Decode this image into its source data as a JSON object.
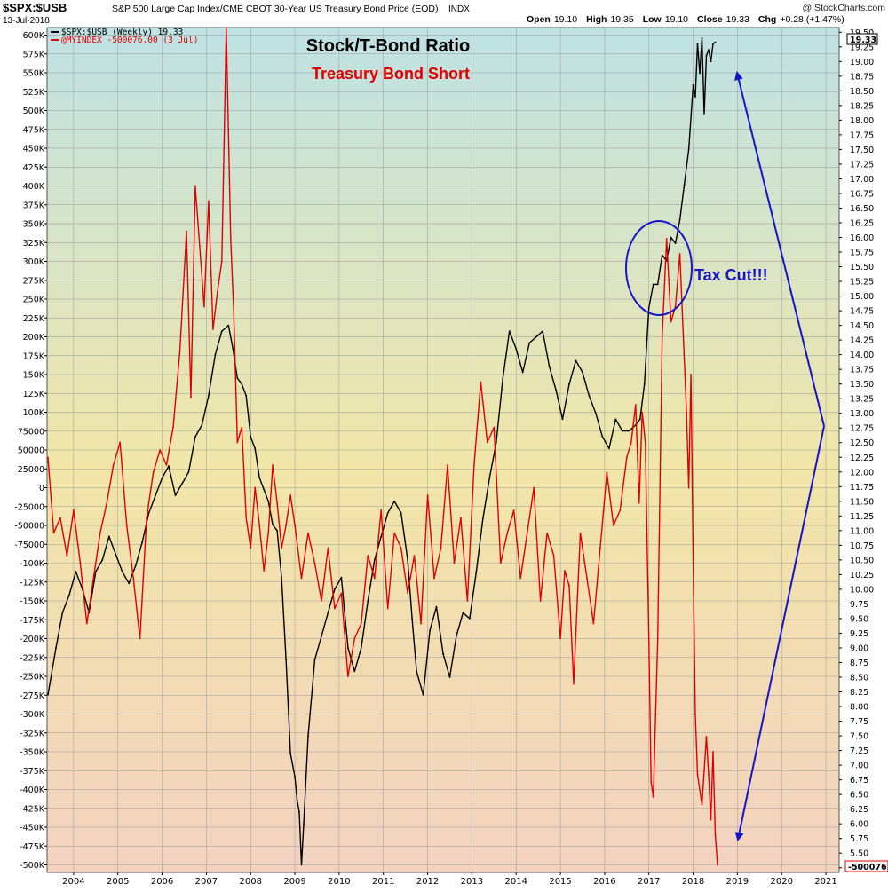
{
  "header": {
    "ticker": "$SPX:$USB",
    "description": "S&P 500 Large Cap Index/CME CBOT 30-Year US Treasury Bond Price (EOD)",
    "exchange": "INDX",
    "date": "13-Jul-2018",
    "open_label": "Open",
    "open": "19.10",
    "high_label": "High",
    "high": "19.35",
    "low_label": "Low",
    "low": "19.10",
    "close_label": "Close",
    "close": "19.33",
    "chg_label": "Chg",
    "chg": "+0.28 (+1.47%)",
    "brand": "@ StockCharts.com"
  },
  "legend": [
    {
      "text": "$SPX:$USB (Weekly) 19.33",
      "color": "#000000"
    },
    {
      "text": "@MYINDEX -500076.00 (3 Jul)",
      "color": "#e00000"
    }
  ],
  "tags": {
    "right_value": "19.33",
    "bottom_value": "-500076.0"
  },
  "colors": {
    "ratio": "#000000",
    "index": "#e00000",
    "annotation": "#1515c8",
    "bg_top": "#bfe2e4",
    "bg_mid": "#f1e6a8",
    "bg_bottom": "#f3d2c0"
  },
  "chart_data": {
    "type": "line",
    "title": "Stock/T-Bond Ratio",
    "subtitle": "Treasury Bond Short",
    "annotations": [
      "Tax Cut!!!"
    ],
    "grid": true,
    "x_ticks": [
      "2004",
      "2005",
      "2006",
      "2007",
      "2008",
      "2009",
      "2010",
      "2011",
      "2012",
      "2013",
      "2014",
      "2015",
      "2016",
      "2017",
      "2018",
      "2019",
      "2020",
      "2021"
    ],
    "x_range": [
      2003.4,
      2021.3
    ],
    "y_left_range": [
      -510000,
      610000
    ],
    "y_left_ticks": [
      600000,
      575000,
      550000,
      525000,
      500000,
      475000,
      450000,
      425000,
      400000,
      375000,
      350000,
      325000,
      300000,
      275000,
      250000,
      225000,
      200000,
      175000,
      150000,
      125000,
      100000,
      75000,
      50000,
      25000,
      0,
      -25000,
      -50000,
      -75000,
      -100000,
      -125000,
      -150000,
      -175000,
      -200000,
      -225000,
      -250000,
      -275000,
      -300000,
      -325000,
      -350000,
      -375000,
      -400000,
      -425000,
      -450000,
      -475000,
      -500000
    ],
    "y_left_tick_labels": [
      "600K",
      "575K",
      "550K",
      "525K",
      "500K",
      "475K",
      "450K",
      "425K",
      "400K",
      "375K",
      "350K",
      "325K",
      "300K",
      "275K",
      "250K",
      "225K",
      "200K",
      "175K",
      "150K",
      "125K",
      "100K",
      "75000",
      "50000",
      "25000",
      "0",
      "-25000",
      "-50000",
      "-75000",
      "-100K",
      "-125K",
      "-150K",
      "-175K",
      "-200K",
      "-225K",
      "-250K",
      "-275K",
      "-300K",
      "-325K",
      "-350K",
      "-375K",
      "-400K",
      "-425K",
      "-450K",
      "-475K",
      "-500K"
    ],
    "y_right_range": [
      5.17,
      19.58
    ],
    "y_right_ticks": [
      "19.50",
      "19.25",
      "19.00",
      "18.75",
      "18.50",
      "18.25",
      "18.00",
      "17.75",
      "17.50",
      "17.25",
      "17.00",
      "16.75",
      "16.50",
      "16.25",
      "16.00",
      "15.75",
      "15.50",
      "15.25",
      "15.00",
      "14.75",
      "14.50",
      "14.25",
      "14.00",
      "13.75",
      "13.50",
      "13.25",
      "13.00",
      "12.75",
      "12.50",
      "12.25",
      "12.00",
      "11.75",
      "11.50",
      "11.25",
      "11.00",
      "10.75",
      "10.50",
      "10.25",
      "10.00",
      "9.75",
      "9.50",
      "9.25",
      "9.00",
      "8.75",
      "8.50",
      "8.25",
      "8.00",
      "7.75",
      "7.50",
      "7.25",
      "7.00",
      "6.75",
      "6.50",
      "6.25",
      "6.00",
      "5.75",
      "5.50",
      "5.25"
    ],
    "series": [
      {
        "name": "$SPX:$USB (Weekly)",
        "axis": "right",
        "color": "#000000",
        "x": [
          2003.42,
          2003.6,
          2003.75,
          2003.9,
          2004.05,
          2004.2,
          2004.35,
          2004.5,
          2004.65,
          2004.8,
          2004.95,
          2005.1,
          2005.25,
          2005.4,
          2005.55,
          2005.7,
          2005.85,
          2006.0,
          2006.15,
          2006.3,
          2006.45,
          2006.6,
          2006.75,
          2006.9,
          2007.05,
          2007.2,
          2007.35,
          2007.5,
          2007.6,
          2007.7,
          2007.8,
          2007.9,
          2008.0,
          2008.1,
          2008.2,
          2008.3,
          2008.4,
          2008.5,
          2008.6,
          2008.7,
          2008.8,
          2008.9,
          2009.0,
          2009.05,
          2009.1,
          2009.15,
          2009.2,
          2009.3,
          2009.45,
          2009.6,
          2009.75,
          2009.9,
          2010.05,
          2010.2,
          2010.35,
          2010.5,
          2010.65,
          2010.8,
          2010.95,
          2011.1,
          2011.25,
          2011.4,
          2011.55,
          2011.65,
          2011.75,
          2011.9,
          2012.05,
          2012.2,
          2012.35,
          2012.5,
          2012.65,
          2012.8,
          2012.95,
          2013.1,
          2013.25,
          2013.4,
          2013.55,
          2013.7,
          2013.85,
          2014.0,
          2014.15,
          2014.3,
          2014.45,
          2014.6,
          2014.75,
          2014.9,
          2015.05,
          2015.2,
          2015.35,
          2015.5,
          2015.65,
          2015.8,
          2015.95,
          2016.1,
          2016.25,
          2016.4,
          2016.55,
          2016.7,
          2016.8,
          2016.9,
          2017.0,
          2017.1,
          2017.2,
          2017.3,
          2017.4,
          2017.5,
          2017.6,
          2017.7,
          2017.8,
          2017.9,
          2018.0,
          2018.05,
          2018.1,
          2018.15,
          2018.2,
          2018.25,
          2018.3,
          2018.35,
          2018.4,
          2018.45,
          2018.5
        ],
        "values": [
          8.2,
          9.0,
          9.6,
          9.9,
          10.3,
          10.0,
          9.6,
          10.3,
          10.5,
          10.9,
          10.6,
          10.3,
          10.1,
          10.4,
          10.8,
          11.3,
          11.6,
          11.9,
          12.1,
          11.6,
          11.8,
          12.0,
          12.6,
          12.8,
          13.3,
          14.0,
          14.4,
          14.5,
          14.1,
          13.6,
          13.5,
          13.3,
          12.6,
          12.4,
          11.9,
          11.7,
          11.5,
          11.1,
          11.0,
          10.2,
          8.8,
          7.2,
          6.8,
          6.4,
          6.2,
          5.3,
          6.0,
          7.5,
          8.8,
          9.2,
          9.6,
          10.0,
          10.2,
          9.0,
          8.6,
          9.0,
          9.8,
          10.5,
          10.9,
          11.3,
          11.5,
          11.3,
          10.5,
          9.5,
          8.6,
          8.2,
          9.3,
          9.7,
          8.9,
          8.5,
          9.2,
          9.6,
          9.5,
          10.3,
          11.2,
          11.9,
          12.5,
          13.6,
          14.4,
          14.1,
          13.7,
          14.2,
          14.3,
          14.4,
          13.8,
          13.4,
          12.9,
          13.5,
          13.9,
          13.7,
          13.3,
          13.0,
          12.6,
          12.4,
          12.9,
          12.7,
          12.7,
          12.8,
          12.9,
          13.5,
          14.8,
          15.2,
          15.2,
          15.7,
          15.6,
          16.0,
          15.9,
          16.3,
          16.9,
          17.5,
          18.6,
          18.4,
          19.3,
          18.8,
          19.4,
          18.1,
          19.1,
          19.2,
          19.0,
          19.3,
          19.33
        ]
      },
      {
        "name": "@MYINDEX",
        "axis": "left",
        "color": "#e00000",
        "x": [
          2003.42,
          2003.55,
          2003.7,
          2003.85,
          2004.0,
          2004.15,
          2004.3,
          2004.45,
          2004.6,
          2004.75,
          2004.9,
          2005.05,
          2005.2,
          2005.35,
          2005.5,
          2005.65,
          2005.8,
          2005.95,
          2006.1,
          2006.25,
          2006.4,
          2006.55,
          2006.65,
          2006.75,
          2006.85,
          2006.95,
          2007.05,
          2007.15,
          2007.25,
          2007.35,
          2007.45,
          2007.55,
          2007.62,
          2007.7,
          2007.8,
          2007.9,
          2008.0,
          2008.1,
          2008.2,
          2008.3,
          2008.4,
          2008.5,
          2008.6,
          2008.7,
          2008.8,
          2008.9,
          2009.0,
          2009.15,
          2009.3,
          2009.45,
          2009.6,
          2009.75,
          2009.9,
          2010.05,
          2010.2,
          2010.35,
          2010.5,
          2010.65,
          2010.8,
          2010.95,
          2011.1,
          2011.25,
          2011.4,
          2011.55,
          2011.7,
          2011.85,
          2012.0,
          2012.15,
          2012.3,
          2012.45,
          2012.6,
          2012.75,
          2012.9,
          2013.05,
          2013.2,
          2013.35,
          2013.5,
          2013.65,
          2013.8,
          2013.95,
          2014.1,
          2014.25,
          2014.4,
          2014.55,
          2014.7,
          2014.85,
          2015.0,
          2015.1,
          2015.2,
          2015.3,
          2015.45,
          2015.6,
          2015.75,
          2015.9,
          2016.05,
          2016.2,
          2016.35,
          2016.5,
          2016.6,
          2016.7,
          2016.78,
          2016.85,
          2016.92,
          2017.0,
          2017.05,
          2017.1,
          2017.2,
          2017.3,
          2017.4,
          2017.5,
          2017.6,
          2017.7,
          2017.8,
          2017.85,
          2017.9,
          2017.95,
          2018.0,
          2018.05,
          2018.1,
          2018.2,
          2018.3,
          2018.35,
          2018.4,
          2018.45,
          2018.5,
          2018.55
        ],
        "values": [
          40000,
          -60000,
          -40000,
          -90000,
          -30000,
          -100000,
          -180000,
          -120000,
          -60000,
          -20000,
          30000,
          60000,
          -50000,
          -120000,
          -200000,
          -40000,
          20000,
          50000,
          30000,
          80000,
          180000,
          340000,
          120000,
          400000,
          320000,
          240000,
          380000,
          210000,
          260000,
          300000,
          610000,
          330000,
          230000,
          60000,
          80000,
          -40000,
          -80000,
          0,
          -50000,
          -110000,
          -60000,
          30000,
          -20000,
          -80000,
          -50000,
          -10000,
          -50000,
          -120000,
          -60000,
          -100000,
          -150000,
          -80000,
          -160000,
          -140000,
          -250000,
          -200000,
          -180000,
          -90000,
          -120000,
          -30000,
          -160000,
          -60000,
          -80000,
          -140000,
          -90000,
          -180000,
          -10000,
          -120000,
          -80000,
          30000,
          -100000,
          -40000,
          -150000,
          30000,
          140000,
          60000,
          80000,
          -100000,
          -60000,
          -30000,
          -120000,
          -60000,
          0,
          -150000,
          -60000,
          -90000,
          -200000,
          -110000,
          -130000,
          -260000,
          -60000,
          -120000,
          -180000,
          -80000,
          20000,
          -50000,
          -30000,
          40000,
          60000,
          110000,
          -20000,
          100000,
          60000,
          -200000,
          -390000,
          -410000,
          -200000,
          200000,
          330000,
          220000,
          240000,
          310000,
          170000,
          100000,
          0,
          150000,
          -100000,
          -300000,
          -380000,
          -420000,
          -330000,
          -380000,
          -440000,
          -350000,
          -460000,
          -500076
        ]
      }
    ]
  }
}
